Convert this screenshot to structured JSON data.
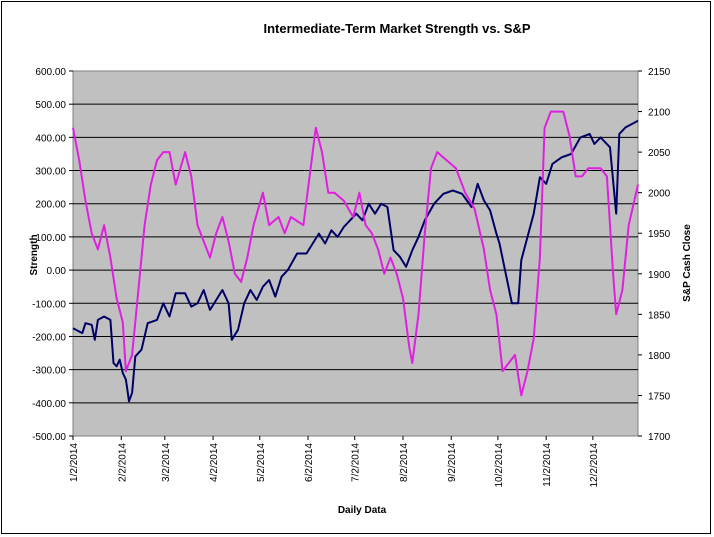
{
  "chart_data": {
    "type": "line",
    "title": "Intermediate-Term Market Strength vs. S&P",
    "xlabel": "Daily Data",
    "ylabel": "Strength",
    "y2label": "S&P Cash Close",
    "x_ticks": [
      "1/2/2014",
      "2/2/2014",
      "3/2/2014",
      "4/2/2014",
      "5/2/2014",
      "6/2/2014",
      "7/2/2014",
      "8/2/2014",
      "9/2/2014",
      "10/2/2014",
      "11/2/2014",
      "12/2/2014"
    ],
    "y_ticks": [
      "600.00",
      "500.00",
      "400.00",
      "300.00",
      "200.00",
      "100.00",
      "0.00",
      "-100.00",
      "-200.00",
      "-300.00",
      "-400.00",
      "-500.00"
    ],
    "y2_ticks": [
      "2150",
      "2100",
      "2050",
      "2000",
      "1950",
      "1900",
      "1850",
      "1800",
      "1750",
      "1700"
    ],
    "ylim": [
      -500,
      600
    ],
    "y2lim": [
      1700,
      2150
    ],
    "grid": "horizontal",
    "plot_background": "#c0c0c0",
    "series": [
      {
        "axis": "left",
        "color": "#000066",
        "points": [
          [
            "2014-01-02",
            -175
          ],
          [
            "2014-01-08",
            -190
          ],
          [
            "2014-01-10",
            -160
          ],
          [
            "2014-01-14",
            -165
          ],
          [
            "2014-01-16",
            -210
          ],
          [
            "2014-01-18",
            -150
          ],
          [
            "2014-01-22",
            -140
          ],
          [
            "2014-01-26",
            -150
          ],
          [
            "2014-01-28",
            -280
          ],
          [
            "2014-01-30",
            -290
          ],
          [
            "2014-02-01",
            -270
          ],
          [
            "2014-02-03",
            -310
          ],
          [
            "2014-02-05",
            -330
          ],
          [
            "2014-02-07",
            -395
          ],
          [
            "2014-02-09",
            -370
          ],
          [
            "2014-02-11",
            -260
          ],
          [
            "2014-02-15",
            -240
          ],
          [
            "2014-02-19",
            -160
          ],
          [
            "2014-02-25",
            -150
          ],
          [
            "2014-03-01",
            -100
          ],
          [
            "2014-03-05",
            -140
          ],
          [
            "2014-03-09",
            -70
          ],
          [
            "2014-03-15",
            -70
          ],
          [
            "2014-03-19",
            -110
          ],
          [
            "2014-03-23",
            -100
          ],
          [
            "2014-03-27",
            -60
          ],
          [
            "2014-03-31",
            -120
          ],
          [
            "2014-04-04",
            -90
          ],
          [
            "2014-04-08",
            -60
          ],
          [
            "2014-04-12",
            -100
          ],
          [
            "2014-04-14",
            -210
          ],
          [
            "2014-04-18",
            -180
          ],
          [
            "2014-04-22",
            -100
          ],
          [
            "2014-04-26",
            -60
          ],
          [
            "2014-04-30",
            -90
          ],
          [
            "2014-05-04",
            -50
          ],
          [
            "2014-05-08",
            -30
          ],
          [
            "2014-05-12",
            -80
          ],
          [
            "2014-05-16",
            -20
          ],
          [
            "2014-05-20",
            0
          ],
          [
            "2014-05-26",
            50
          ],
          [
            "2014-06-01",
            50
          ],
          [
            "2014-06-05",
            80
          ],
          [
            "2014-06-09",
            110
          ],
          [
            "2014-06-13",
            80
          ],
          [
            "2014-06-17",
            120
          ],
          [
            "2014-06-21",
            100
          ],
          [
            "2014-06-25",
            130
          ],
          [
            "2014-06-29",
            150
          ],
          [
            "2014-07-03",
            170
          ],
          [
            "2014-07-07",
            150
          ],
          [
            "2014-07-11",
            200
          ],
          [
            "2014-07-15",
            170
          ],
          [
            "2014-07-19",
            200
          ],
          [
            "2014-07-23",
            190
          ],
          [
            "2014-07-27",
            60
          ],
          [
            "2014-07-31",
            40
          ],
          [
            "2014-08-04",
            10
          ],
          [
            "2014-08-08",
            60
          ],
          [
            "2014-08-12",
            100
          ],
          [
            "2014-08-16",
            150
          ],
          [
            "2014-08-22",
            200
          ],
          [
            "2014-08-28",
            230
          ],
          [
            "2014-09-03",
            240
          ],
          [
            "2014-09-09",
            230
          ],
          [
            "2014-09-15",
            190
          ],
          [
            "2014-09-19",
            260
          ],
          [
            "2014-09-23",
            210
          ],
          [
            "2014-09-27",
            180
          ],
          [
            "2014-10-01",
            110
          ],
          [
            "2014-10-03",
            80
          ],
          [
            "2014-10-07",
            -10
          ],
          [
            "2014-10-11",
            -100
          ],
          [
            "2014-10-15",
            -100
          ],
          [
            "2014-10-17",
            30
          ],
          [
            "2014-10-21",
            100
          ],
          [
            "2014-10-25",
            170
          ],
          [
            "2014-10-29",
            280
          ],
          [
            "2014-11-02",
            260
          ],
          [
            "2014-11-06",
            320
          ],
          [
            "2014-11-12",
            340
          ],
          [
            "2014-11-18",
            350
          ],
          [
            "2014-11-24",
            400
          ],
          [
            "2014-11-30",
            410
          ],
          [
            "2014-12-03",
            380
          ],
          [
            "2014-12-07",
            400
          ],
          [
            "2014-12-13",
            370
          ],
          [
            "2014-12-17",
            170
          ],
          [
            "2014-12-19",
            410
          ],
          [
            "2014-12-23",
            430
          ],
          [
            "2014-12-31",
            450
          ]
        ]
      },
      {
        "axis": "right",
        "color": "#e020e0",
        "points": [
          [
            "2014-01-02",
            2080
          ],
          [
            "2014-01-06",
            2040
          ],
          [
            "2014-01-10",
            1990
          ],
          [
            "2014-01-14",
            1950
          ],
          [
            "2014-01-18",
            1930
          ],
          [
            "2014-01-22",
            1960
          ],
          [
            "2014-01-26",
            1920
          ],
          [
            "2014-01-30",
            1870
          ],
          [
            "2014-02-03",
            1840
          ],
          [
            "2014-02-05",
            1780
          ],
          [
            "2014-02-09",
            1800
          ],
          [
            "2014-02-13",
            1880
          ],
          [
            "2014-02-17",
            1960
          ],
          [
            "2014-02-21",
            2010
          ],
          [
            "2014-02-25",
            2040
          ],
          [
            "2014-03-01",
            2050
          ],
          [
            "2014-03-05",
            2050
          ],
          [
            "2014-03-09",
            2010
          ],
          [
            "2014-03-15",
            2050
          ],
          [
            "2014-03-19",
            2020
          ],
          [
            "2014-03-23",
            1960
          ],
          [
            "2014-03-27",
            1940
          ],
          [
            "2014-03-31",
            1920
          ],
          [
            "2014-04-04",
            1950
          ],
          [
            "2014-04-08",
            1970
          ],
          [
            "2014-04-12",
            1940
          ],
          [
            "2014-04-16",
            1900
          ],
          [
            "2014-04-20",
            1890
          ],
          [
            "2014-04-24",
            1920
          ],
          [
            "2014-04-28",
            1960
          ],
          [
            "2014-05-04",
            2000
          ],
          [
            "2014-05-08",
            1960
          ],
          [
            "2014-05-14",
            1970
          ],
          [
            "2014-05-18",
            1950
          ],
          [
            "2014-05-22",
            1970
          ],
          [
            "2014-05-30",
            1960
          ],
          [
            "2014-06-03",
            2020
          ],
          [
            "2014-06-07",
            2080
          ],
          [
            "2014-06-11",
            2050
          ],
          [
            "2014-06-15",
            2000
          ],
          [
            "2014-06-19",
            2000
          ],
          [
            "2014-06-25",
            1990
          ],
          [
            "2014-07-01",
            1970
          ],
          [
            "2014-07-05",
            2000
          ],
          [
            "2014-07-09",
            1960
          ],
          [
            "2014-07-13",
            1950
          ],
          [
            "2014-07-17",
            1930
          ],
          [
            "2014-07-21",
            1900
          ],
          [
            "2014-07-25",
            1920
          ],
          [
            "2014-07-29",
            1900
          ],
          [
            "2014-08-02",
            1870
          ],
          [
            "2014-08-06",
            1810
          ],
          [
            "2014-08-08",
            1790
          ],
          [
            "2014-08-12",
            1850
          ],
          [
            "2014-08-16",
            1950
          ],
          [
            "2014-08-20",
            2030
          ],
          [
            "2014-08-24",
            2050
          ],
          [
            "2014-08-30",
            2040
          ],
          [
            "2014-09-05",
            2030
          ],
          [
            "2014-09-11",
            2000
          ],
          [
            "2014-09-17",
            1980
          ],
          [
            "2014-09-23",
            1930
          ],
          [
            "2014-09-27",
            1880
          ],
          [
            "2014-10-01",
            1850
          ],
          [
            "2014-10-05",
            1780
          ],
          [
            "2014-10-09",
            1790
          ],
          [
            "2014-10-13",
            1800
          ],
          [
            "2014-10-17",
            1750
          ],
          [
            "2014-10-21",
            1780
          ],
          [
            "2014-10-25",
            1820
          ],
          [
            "2014-10-29",
            1920
          ],
          [
            "2014-11-01",
            2080
          ],
          [
            "2014-11-05",
            2100
          ],
          [
            "2014-11-09",
            2100
          ],
          [
            "2014-11-13",
            2100
          ],
          [
            "2014-11-17",
            2070
          ],
          [
            "2014-11-21",
            2020
          ],
          [
            "2014-11-25",
            2020
          ],
          [
            "2014-11-29",
            2030
          ],
          [
            "2014-12-03",
            2030
          ],
          [
            "2014-12-07",
            2030
          ],
          [
            "2014-12-11",
            2020
          ],
          [
            "2014-12-15",
            1900
          ],
          [
            "2014-12-17",
            1850
          ],
          [
            "2014-12-21",
            1880
          ],
          [
            "2014-12-25",
            1960
          ],
          [
            "2014-12-31",
            2010
          ]
        ]
      }
    ]
  }
}
